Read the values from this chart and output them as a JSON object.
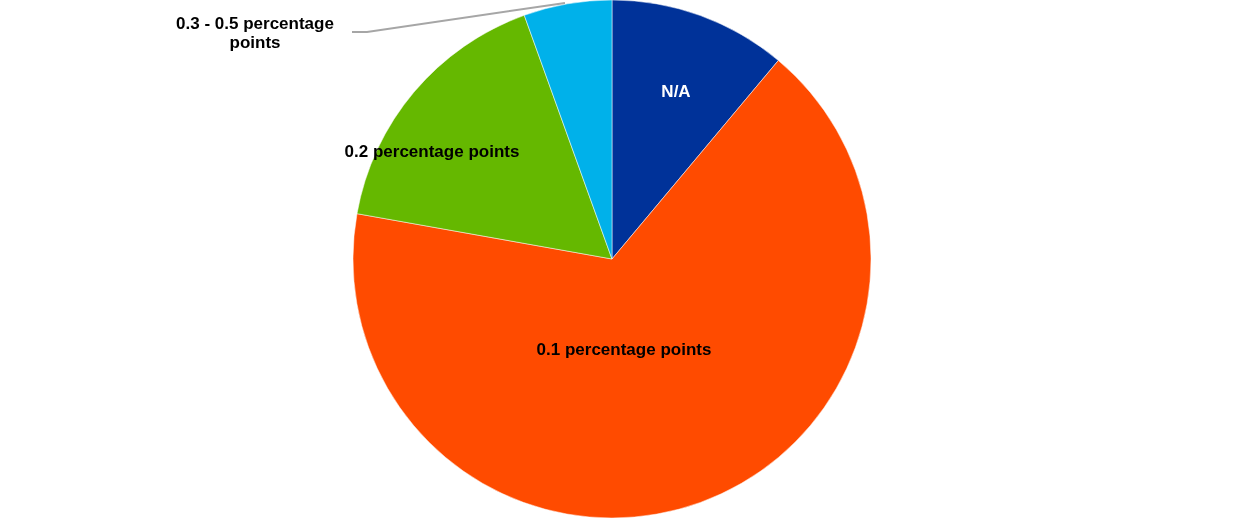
{
  "chart_data": {
    "type": "pie",
    "categories": [
      "N/A",
      "0.1 percentage points",
      "0.2 percentage points",
      "0.3 - 0.5 percentage points"
    ],
    "values": [
      11.1,
      66.7,
      16.7,
      5.5
    ],
    "colors": [
      "#003299",
      "#ff4b00",
      "#65b800",
      "#00b1ea"
    ]
  }
}
